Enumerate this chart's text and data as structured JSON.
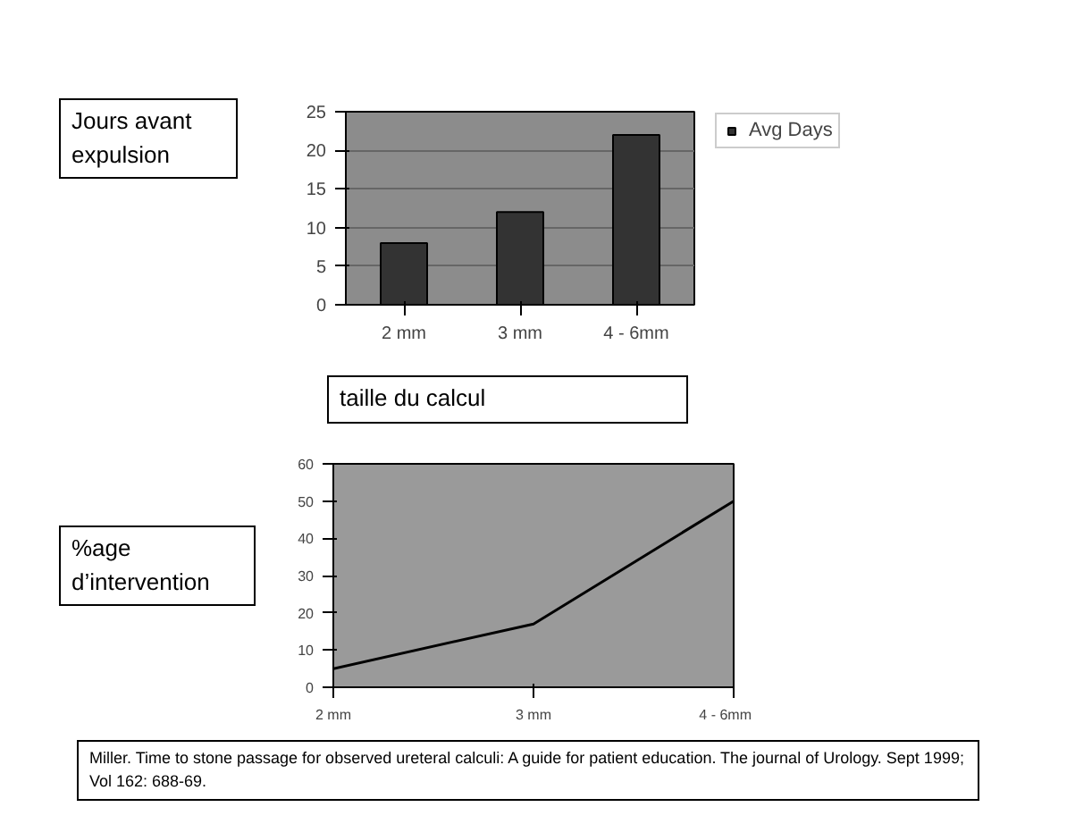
{
  "chart_data": [
    {
      "type": "bar",
      "categories": [
        "2 mm",
        "3 mm",
        "4 - 6mm"
      ],
      "series": [
        {
          "name": "Avg Days",
          "color": "#333333",
          "values": [
            8,
            12,
            22
          ]
        }
      ],
      "ylim": [
        0,
        25
      ],
      "yticks": [
        0,
        5,
        10,
        15,
        20,
        25
      ],
      "ylabel": "Jours avant expulsion",
      "xlabel": "taille du calcul",
      "grid": "y",
      "legend": "right"
    },
    {
      "type": "line",
      "categories": [
        "2 mm",
        "3 mm",
        "4 - 6mm"
      ],
      "series": [
        {
          "color": "#000000",
          "values": [
            5,
            17,
            50
          ]
        }
      ],
      "ylim": [
        0,
        60
      ],
      "yticks": [
        0,
        10,
        20,
        30,
        40,
        50,
        60
      ],
      "ylabel": "%age d’intervention",
      "grid": false,
      "annotations": [
        "Miller. Time to stone passage for observed ureteral calculi: A guide for patient education. The journal of Urology. Sept 1999; Vol 162: 688-69."
      ]
    }
  ]
}
